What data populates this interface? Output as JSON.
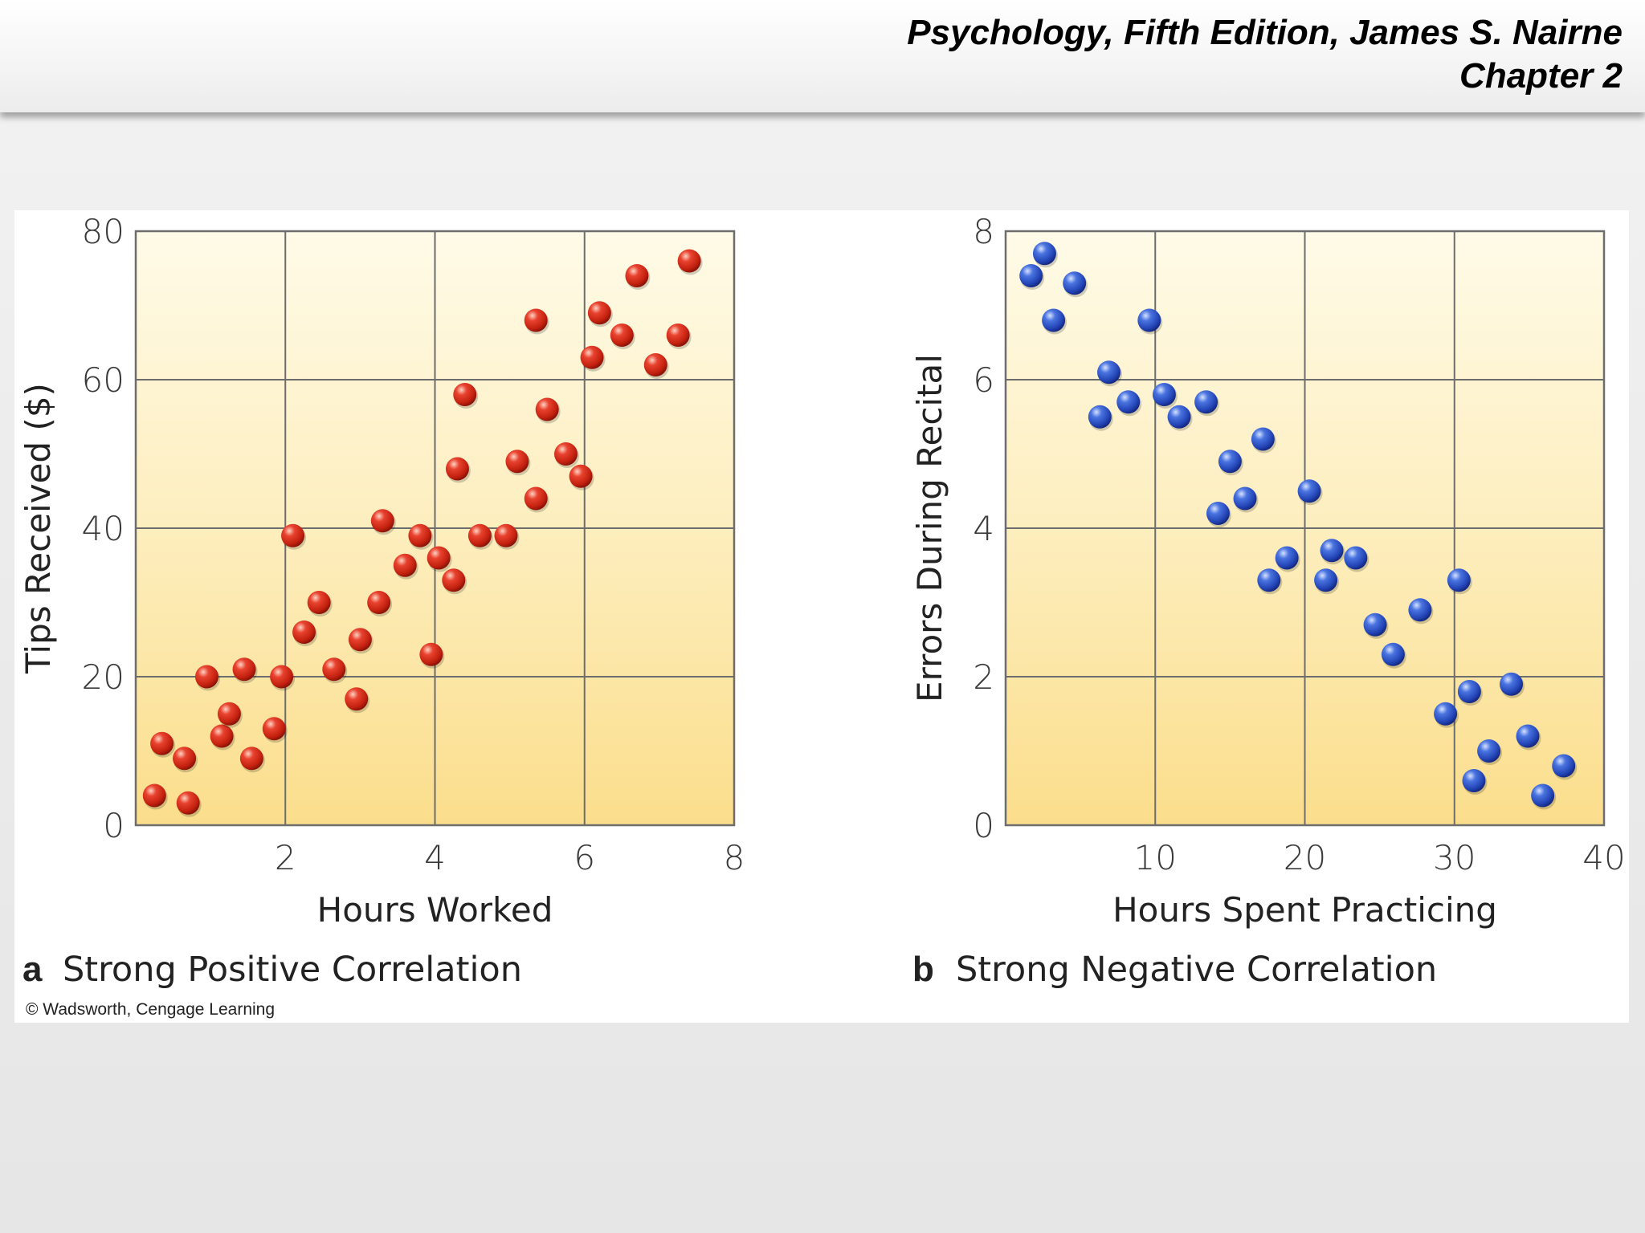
{
  "header": {
    "line1": "Psychology, Fifth Edition, James S. Nairne",
    "line2": "Chapter 2"
  },
  "copyright": "© Wadsworth, Cengage Learning",
  "colors": {
    "red_point": "#d42a1c",
    "blue_point": "#2a4fc0",
    "plot_bg_top": "#fffbe6",
    "plot_bg_bottom": "#fbdf8e",
    "grid": "#6d6d6d"
  },
  "chart_data": [
    {
      "type": "scatter",
      "panel_letter": "a",
      "caption": "Strong Positive Correlation",
      "xlabel": "Hours Worked",
      "ylabel": "Tips Received ($)",
      "xlim": [
        0,
        8
      ],
      "ylim": [
        0,
        80
      ],
      "xticks": [
        "2",
        "4",
        "6",
        "8"
      ],
      "yticks": [
        "0",
        "20",
        "40",
        "60",
        "80"
      ],
      "grid": true,
      "marker_color": "red",
      "points": [
        [
          0.25,
          4
        ],
        [
          0.35,
          11
        ],
        [
          0.65,
          9
        ],
        [
          0.7,
          3
        ],
        [
          0.95,
          20
        ],
        [
          1.15,
          12
        ],
        [
          1.25,
          15
        ],
        [
          1.45,
          21
        ],
        [
          1.55,
          9
        ],
        [
          1.85,
          13
        ],
        [
          1.95,
          20
        ],
        [
          2.1,
          39
        ],
        [
          2.25,
          26
        ],
        [
          2.45,
          30
        ],
        [
          2.65,
          21
        ],
        [
          2.95,
          17
        ],
        [
          3.0,
          25
        ],
        [
          3.25,
          30
        ],
        [
          3.3,
          41
        ],
        [
          3.6,
          35
        ],
        [
          3.8,
          39
        ],
        [
          3.95,
          23
        ],
        [
          4.05,
          36
        ],
        [
          4.25,
          33
        ],
        [
          4.3,
          48
        ],
        [
          4.4,
          58
        ],
        [
          4.6,
          39
        ],
        [
          4.95,
          39
        ],
        [
          5.1,
          49
        ],
        [
          5.35,
          44
        ],
        [
          5.35,
          68
        ],
        [
          5.5,
          56
        ],
        [
          5.75,
          50
        ],
        [
          5.95,
          47
        ],
        [
          6.1,
          63
        ],
        [
          6.2,
          69
        ],
        [
          6.5,
          66
        ],
        [
          6.7,
          74
        ],
        [
          6.95,
          62
        ],
        [
          7.25,
          66
        ],
        [
          7.4,
          76
        ]
      ]
    },
    {
      "type": "scatter",
      "panel_letter": "b",
      "caption": "Strong Negative Correlation",
      "xlabel": "Hours Spent Practicing",
      "ylabel": "Errors During Recital",
      "xlim": [
        0,
        40
      ],
      "ylim": [
        0,
        8
      ],
      "xticks": [
        "10",
        "20",
        "30",
        "40"
      ],
      "yticks": [
        "0",
        "2",
        "4",
        "6",
        "8"
      ],
      "grid": true,
      "marker_color": "blue",
      "points": [
        [
          1.7,
          7.4
        ],
        [
          2.6,
          7.7
        ],
        [
          3.2,
          6.8
        ],
        [
          4.6,
          7.3
        ],
        [
          6.3,
          5.5
        ],
        [
          6.9,
          6.1
        ],
        [
          8.2,
          5.7
        ],
        [
          9.6,
          6.8
        ],
        [
          10.6,
          5.8
        ],
        [
          11.6,
          5.5
        ],
        [
          13.4,
          5.7
        ],
        [
          14.2,
          4.2
        ],
        [
          15.0,
          4.9
        ],
        [
          16.0,
          4.4
        ],
        [
          17.2,
          5.2
        ],
        [
          17.6,
          3.3
        ],
        [
          18.8,
          3.6
        ],
        [
          20.3,
          4.5
        ],
        [
          21.4,
          3.3
        ],
        [
          21.8,
          3.7
        ],
        [
          23.4,
          3.6
        ],
        [
          24.7,
          2.7
        ],
        [
          25.9,
          2.3
        ],
        [
          27.7,
          2.9
        ],
        [
          29.4,
          1.5
        ],
        [
          30.3,
          3.3
        ],
        [
          31.0,
          1.8
        ],
        [
          31.3,
          0.6
        ],
        [
          32.3,
          1.0
        ],
        [
          33.8,
          1.9
        ],
        [
          34.9,
          1.2
        ],
        [
          35.9,
          0.4
        ],
        [
          37.3,
          0.8
        ]
      ]
    }
  ]
}
